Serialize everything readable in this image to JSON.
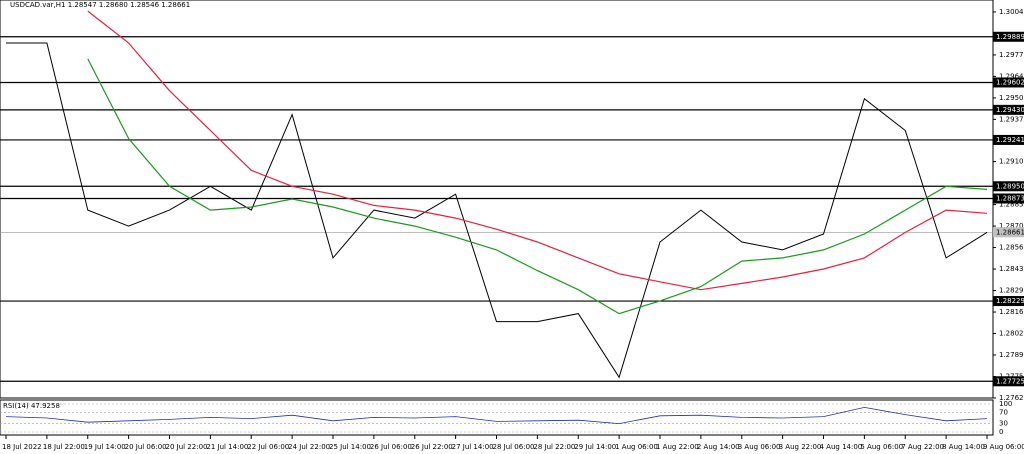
{
  "chart_data": {
    "type": "line",
    "title": "USDCAD.var,H1 1.28547 1.28680 1.28546 1.28661",
    "categories": [
      "18 Jul 2022",
      "18 Jul 22:00",
      "19 Jul 14:00",
      "20 Jul 06:00",
      "20 Jul 22:00",
      "21 Jul 14:00",
      "22 Jul 06:00",
      "24 Jul 22:00",
      "25 Jul 14:00",
      "26 Jul 06:00",
      "26 Jul 22:00",
      "27 Jul 14:00",
      "28 Jul 06:00",
      "28 Jul 22:00",
      "29 Jul 14:00",
      "1 Aug 06:00",
      "1 Aug 22:00",
      "2 Aug 14:00",
      "3 Aug 06:00",
      "3 Aug 22:00",
      "4 Aug 14:00",
      "5 Aug 06:00",
      "7 Aug 22:00",
      "8 Aug 14:00",
      "9 Aug 06:00"
    ],
    "series": [
      {
        "color": "#000000",
        "values": [
          1.2985,
          1.2985,
          1.288,
          1.287,
          1.288,
          1.2895,
          1.288,
          1.294,
          1.285,
          1.288,
          1.2875,
          1.289,
          1.281,
          1.281,
          1.2815,
          1.2775,
          1.286,
          1.288,
          1.286,
          1.2855,
          1.2865,
          1.295,
          1.293,
          1.285,
          1.2866
        ]
      },
      {
        "color": "#e8203c",
        "values": [
          null,
          null,
          1.3005,
          1.2985,
          1.2955,
          1.293,
          1.2905,
          1.2895,
          1.289,
          1.2883,
          1.288,
          1.2875,
          1.2868,
          1.286,
          1.285,
          1.284,
          1.2835,
          1.283,
          1.2834,
          1.2838,
          1.2843,
          1.285,
          1.2866,
          1.288,
          1.2878
        ]
      },
      {
        "color": "#1a9a1a",
        "values": [
          null,
          null,
          1.2975,
          1.2925,
          1.2895,
          1.288,
          1.2882,
          1.2887,
          1.2882,
          1.2875,
          1.287,
          1.2863,
          1.2855,
          1.2842,
          1.283,
          1.2815,
          1.2823,
          1.2832,
          1.2848,
          1.285,
          1.2855,
          1.2865,
          1.288,
          1.2895,
          1.2893
        ]
      }
    ],
    "ylim": [
      1.2762,
      1.3012
    ],
    "yticks": [
      1.30045,
      1.29775,
      {
        "value": 1.2964,
        "label": "1.29640"
      },
      1.29505,
      {
        "value": 1.2937,
        "label": "1.29370"
      },
      1.29105,
      1.28835,
      {
        "value": 1.287,
        "label": "1.28700"
      },
      1.28565,
      {
        "value": 1.2843,
        "label": "1.28430"
      },
      1.28295,
      {
        "value": 1.2816,
        "label": "1.28160"
      },
      1.28025,
      {
        "value": 1.2789,
        "label": "1.27890"
      },
      1.27755,
      {
        "value": 1.2762,
        "label": "1.27620"
      }
    ],
    "levels": [
      1.29889,
      1.29602,
      {
        "value": 1.2943,
        "label": "1.29430"
      },
      1.29241,
      {
        "value": 1.2895,
        "label": "1.28950"
      },
      1.28873,
      1.28229,
      1.27725
    ],
    "last_price": 1.28661,
    "rsi": {
      "title": "RSI(14) 47.9258",
      "color": "#1f2fb0",
      "values": [
        55,
        50,
        35,
        40,
        45,
        52,
        48,
        60,
        40,
        52,
        50,
        55,
        38,
        40,
        42,
        30,
        58,
        60,
        52,
        50,
        55,
        88,
        62,
        40,
        48
      ],
      "ylim": [
        0,
        100
      ],
      "yticks": [
        100,
        70,
        30,
        0
      ]
    }
  }
}
